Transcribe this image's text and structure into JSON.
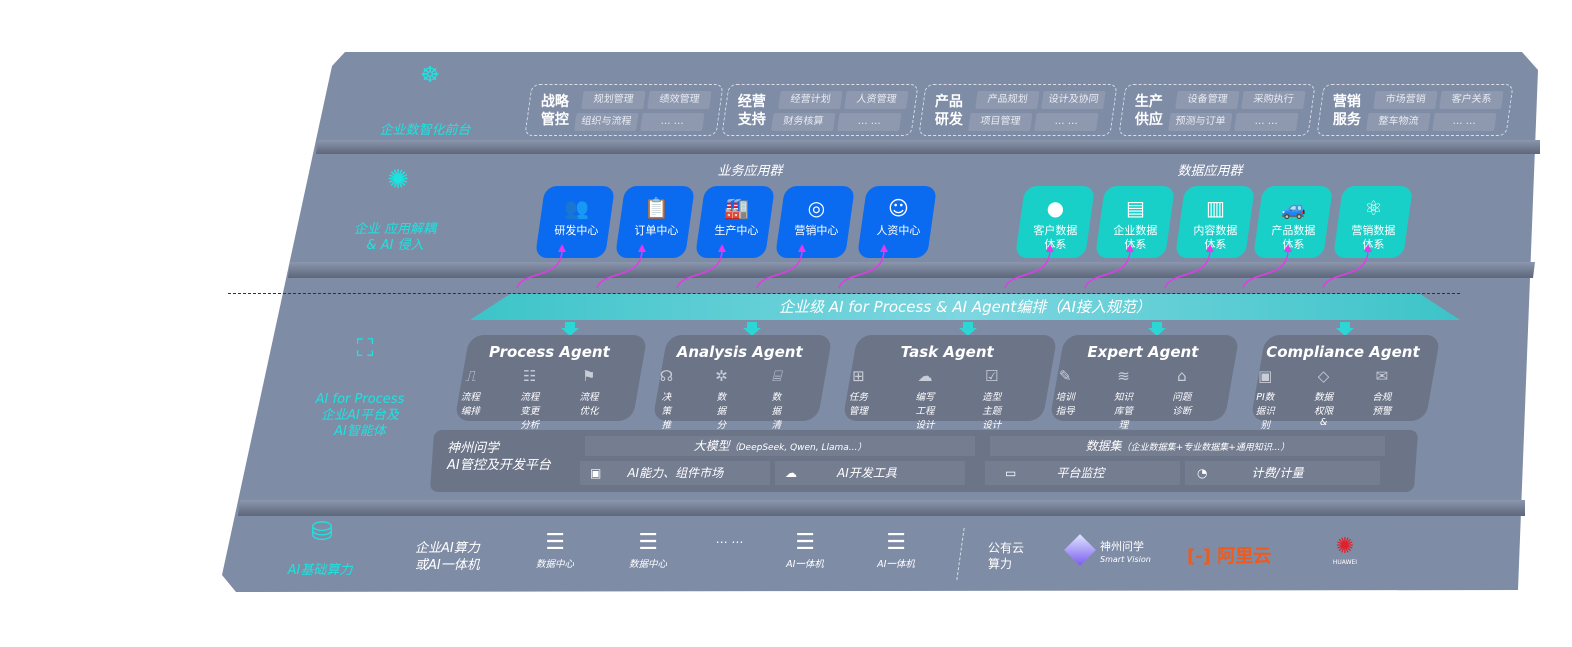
{
  "front": {
    "label": "企业数智化前台",
    "icon": "brain-icon",
    "groups": [
      {
        "title": [
          "战略",
          "管控"
        ],
        "items": [
          "规划管理",
          "绩效管理",
          "组织与流程",
          "… …"
        ]
      },
      {
        "title": [
          "经营",
          "支持"
        ],
        "items": [
          "经营计划",
          "人资管理",
          "财务核算",
          "… …"
        ]
      },
      {
        "title": [
          "产品",
          "研发"
        ],
        "items": [
          "产品规划",
          "设计及协同",
          "项目管理",
          "… …"
        ]
      },
      {
        "title": [
          "生产",
          "供应"
        ],
        "items": [
          "设备管理",
          "采购执行",
          "预测与订单",
          "… …"
        ]
      },
      {
        "title": [
          "营销",
          "服务"
        ],
        "items": [
          "市场营销",
          "客户关系",
          "整车物流",
          "… …"
        ]
      }
    ]
  },
  "apps": {
    "label": [
      "企业 应用解耦",
      "& AI 侵入"
    ],
    "icon": "molecule-icon",
    "business_title": "业务应用群",
    "business": [
      {
        "label": "研发中心",
        "icon": "users-icon"
      },
      {
        "label": "订单中心",
        "icon": "clipboard-icon"
      },
      {
        "label": "生产中心",
        "icon": "factory-icon"
      },
      {
        "label": "营销中心",
        "icon": "target-icon"
      },
      {
        "label": "人资中心",
        "icon": "person-icon"
      }
    ],
    "data_title": "数据应用群",
    "data": [
      {
        "label": [
          "客户数据",
          "体系"
        ],
        "icon": "user-icon"
      },
      {
        "label": [
          "企业数据",
          "体系"
        ],
        "icon": "building-icon"
      },
      {
        "label": [
          "内容数据",
          "体系"
        ],
        "icon": "books-icon"
      },
      {
        "label": [
          "产品数据",
          "体系"
        ],
        "icon": "car-icon"
      },
      {
        "label": [
          "营销数据",
          "体系"
        ],
        "icon": "atom-icon"
      }
    ]
  },
  "banner": "企业级 AI for Process & AI Agent编排（AI接入规范）",
  "ai": {
    "label": [
      "AI for Process",
      "企业AI平台及",
      "AI智能体"
    ],
    "icon": "face-scan-icon",
    "agents": [
      {
        "name": "Process Agent",
        "items": [
          "流程编排",
          "流程变更分析",
          "流程优化"
        ]
      },
      {
        "name": "Analysis Agent",
        "items": [
          "决策推荐",
          "数据分析",
          "数据清洗"
        ]
      },
      {
        "name": "Task Agent",
        "items": [
          "任务管理",
          "编写工程设计方案",
          "造型主题设计"
        ]
      },
      {
        "name": "Expert Agent",
        "items": [
          "培训指导",
          "知识库管理",
          "问题诊断"
        ]
      },
      {
        "name": "Compliance Agent",
        "items": [
          "PI数据识别",
          "数据权限 & 安全",
          "合规预警"
        ]
      }
    ],
    "platform": {
      "title": [
        "神州问学",
        "AI管控及开发平台"
      ],
      "model": "大模型",
      "model_note": "（DeepSeek, Qwen, Llama...）",
      "dataset": "数据集",
      "dataset_note": "（企业数据集+专业数据集+通用知识...）",
      "tools": [
        "AI能力、组件市场",
        "AI开发工具",
        "平台监控",
        "计费/计量"
      ]
    }
  },
  "infra": {
    "label": "AI基础算力",
    "icon": "database-icon",
    "enterprise": [
      "企业AI算力",
      "或AI一体机"
    ],
    "servers": [
      "数据中心",
      "数据中心",
      "AI一体机",
      "AI一体机"
    ],
    "ellipsis": "… …",
    "public": [
      "公有云",
      "算力"
    ],
    "vendors": {
      "smartvision": [
        "神州问学",
        "Smart Vision"
      ],
      "aliyun": "阿里云",
      "huawei": "HUAWEI"
    },
    "colors": {
      "aliyun": "#f05a1a",
      "huawei": "#e0202a",
      "teal": "#1de3e0",
      "blue": "#0a6bf0",
      "arrow": "#e23be8"
    }
  }
}
